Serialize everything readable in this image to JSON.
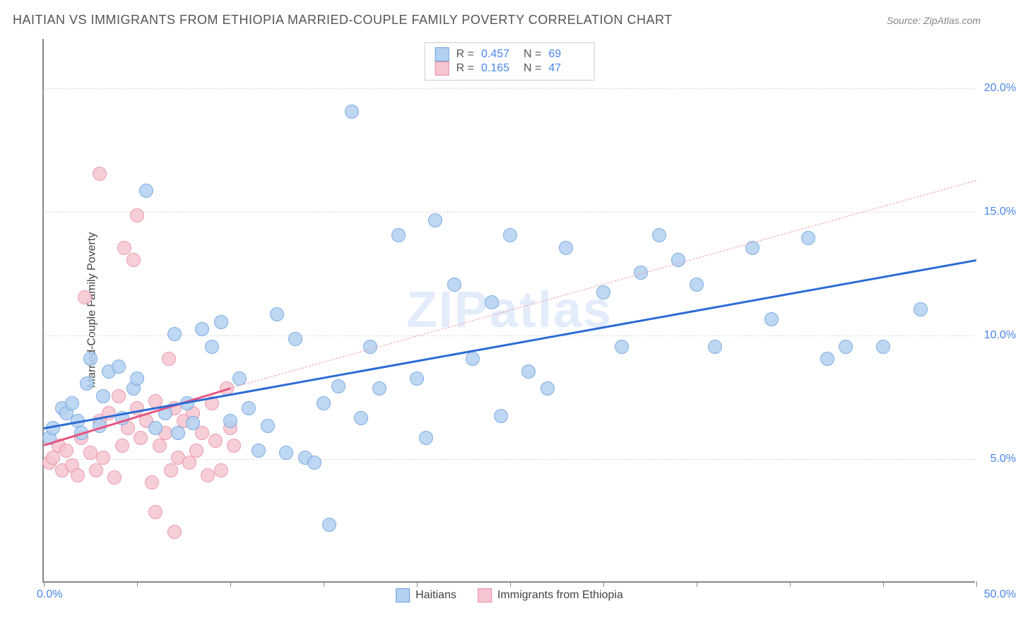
{
  "title": "HAITIAN VS IMMIGRANTS FROM ETHIOPIA MARRIED-COUPLE FAMILY POVERTY CORRELATION CHART",
  "source": "Source: ZipAtlas.com",
  "ylabel": "Married-Couple Family Poverty",
  "watermark": "ZIPatlas",
  "chart": {
    "type": "scatter",
    "xlim": [
      0,
      50
    ],
    "ylim": [
      0,
      22
    ],
    "y_gridlines": [
      5,
      10,
      15,
      20
    ],
    "y_tick_labels": [
      "5.0%",
      "10.0%",
      "15.0%",
      "20.0%"
    ],
    "x_ticks": [
      0,
      5,
      10,
      15,
      20,
      25,
      30,
      35,
      40,
      45,
      50
    ],
    "x_start_label": "0.0%",
    "x_end_label": "50.0%",
    "background_color": "#ffffff",
    "grid_color": "#dddddd",
    "axis_color": "#888888",
    "marker_radius": 10,
    "series": [
      {
        "name": "Haitians",
        "fill": "#b3d1f0",
        "stroke": "#6aa0de",
        "r_value": "0.457",
        "n_value": "69",
        "trend": {
          "x1": 0,
          "y1": 6.3,
          "x2": 50,
          "y2": 13.1,
          "color": "#2b6cd4",
          "width": 3,
          "dash": false
        },
        "points": [
          [
            0.3,
            5.8
          ],
          [
            0.5,
            6.2
          ],
          [
            1.0,
            7.0
          ],
          [
            1.2,
            6.8
          ],
          [
            1.5,
            7.2
          ],
          [
            1.8,
            6.5
          ],
          [
            2.0,
            6.0
          ],
          [
            2.3,
            8.0
          ],
          [
            2.5,
            9.0
          ],
          [
            3.0,
            6.3
          ],
          [
            3.2,
            7.5
          ],
          [
            3.5,
            8.5
          ],
          [
            4.0,
            8.7
          ],
          [
            4.2,
            6.6
          ],
          [
            4.8,
            7.8
          ],
          [
            5.0,
            8.2
          ],
          [
            5.5,
            15.8
          ],
          [
            6.0,
            6.2
          ],
          [
            6.5,
            6.8
          ],
          [
            7.0,
            10.0
          ],
          [
            7.2,
            6.0
          ],
          [
            7.7,
            7.2
          ],
          [
            8.0,
            6.4
          ],
          [
            8.5,
            10.2
          ],
          [
            9.0,
            9.5
          ],
          [
            9.5,
            10.5
          ],
          [
            10.0,
            6.5
          ],
          [
            10.5,
            8.2
          ],
          [
            11.0,
            7.0
          ],
          [
            11.5,
            5.3
          ],
          [
            12.0,
            6.3
          ],
          [
            12.5,
            10.8
          ],
          [
            13.0,
            5.2
          ],
          [
            13.5,
            9.8
          ],
          [
            14.0,
            5.0
          ],
          [
            14.5,
            4.8
          ],
          [
            15.0,
            7.2
          ],
          [
            15.3,
            2.3
          ],
          [
            15.8,
            7.9
          ],
          [
            16.5,
            19.0
          ],
          [
            17.0,
            6.6
          ],
          [
            17.5,
            9.5
          ],
          [
            18.0,
            7.8
          ],
          [
            19.0,
            14.0
          ],
          [
            20.0,
            8.2
          ],
          [
            20.5,
            5.8
          ],
          [
            21.0,
            14.6
          ],
          [
            22.0,
            12.0
          ],
          [
            23.0,
            9.0
          ],
          [
            24.0,
            11.3
          ],
          [
            24.5,
            6.7
          ],
          [
            25.0,
            14.0
          ],
          [
            26.0,
            8.5
          ],
          [
            27.0,
            7.8
          ],
          [
            28.0,
            13.5
          ],
          [
            30.0,
            11.7
          ],
          [
            31.0,
            9.5
          ],
          [
            32.0,
            12.5
          ],
          [
            33.0,
            14.0
          ],
          [
            34.0,
            13.0
          ],
          [
            35.0,
            12.0
          ],
          [
            36.0,
            9.5
          ],
          [
            38.0,
            13.5
          ],
          [
            39.0,
            10.6
          ],
          [
            41.0,
            13.9
          ],
          [
            42.0,
            9.0
          ],
          [
            43.0,
            9.5
          ],
          [
            45.0,
            9.5
          ],
          [
            47.0,
            11.0
          ]
        ]
      },
      {
        "name": "Immigrants from Ethiopia",
        "fill": "#f5c6d1",
        "stroke": "#e88ba3",
        "r_value": "0.165",
        "n_value": "47",
        "trend_solid": {
          "x1": 0,
          "y1": 5.6,
          "x2": 10,
          "y2": 7.9,
          "color": "#e75480",
          "width": 3,
          "dash": false
        },
        "trend_dash": {
          "x1": 10,
          "y1": 7.9,
          "x2": 50,
          "y2": 16.3,
          "color": "#f0a0b5",
          "width": 1,
          "dash": true
        },
        "points": [
          [
            0.3,
            4.8
          ],
          [
            0.5,
            5.0
          ],
          [
            0.8,
            5.5
          ],
          [
            1.0,
            4.5
          ],
          [
            1.2,
            5.3
          ],
          [
            1.5,
            4.7
          ],
          [
            1.8,
            4.3
          ],
          [
            2.0,
            5.8
          ],
          [
            2.2,
            11.5
          ],
          [
            2.5,
            5.2
          ],
          [
            2.8,
            4.5
          ],
          [
            3.0,
            6.5
          ],
          [
            3.0,
            16.5
          ],
          [
            3.2,
            5.0
          ],
          [
            3.5,
            6.8
          ],
          [
            3.8,
            4.2
          ],
          [
            4.0,
            7.5
          ],
          [
            4.2,
            5.5
          ],
          [
            4.3,
            13.5
          ],
          [
            4.5,
            6.2
          ],
          [
            4.8,
            13.0
          ],
          [
            5.0,
            7.0
          ],
          [
            5.0,
            14.8
          ],
          [
            5.2,
            5.8
          ],
          [
            5.5,
            6.5
          ],
          [
            5.8,
            4.0
          ],
          [
            6.0,
            7.3
          ],
          [
            6.0,
            2.8
          ],
          [
            6.2,
            5.5
          ],
          [
            6.5,
            6.0
          ],
          [
            6.7,
            9.0
          ],
          [
            6.8,
            4.5
          ],
          [
            7.0,
            7.0
          ],
          [
            7.0,
            2.0
          ],
          [
            7.2,
            5.0
          ],
          [
            7.5,
            6.5
          ],
          [
            7.8,
            4.8
          ],
          [
            8.0,
            6.8
          ],
          [
            8.2,
            5.3
          ],
          [
            8.5,
            6.0
          ],
          [
            8.8,
            4.3
          ],
          [
            9.0,
            7.2
          ],
          [
            9.2,
            5.7
          ],
          [
            9.5,
            4.5
          ],
          [
            9.8,
            7.8
          ],
          [
            10.0,
            6.2
          ],
          [
            10.2,
            5.5
          ]
        ]
      }
    ]
  },
  "legend_stats": {
    "r_label": "R =",
    "n_label": "N ="
  },
  "bottom_legend": [
    {
      "label": "Haitians",
      "fill": "#b3d1f0",
      "stroke": "#6aa0de"
    },
    {
      "label": "Immigrants from Ethiopia",
      "fill": "#f5c6d1",
      "stroke": "#e88ba3"
    }
  ]
}
